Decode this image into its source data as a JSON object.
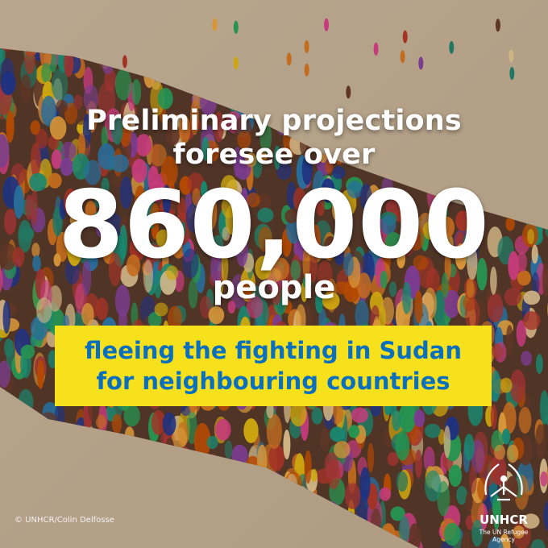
{
  "headline": {
    "lines": [
      "Preliminary projections",
      "foresee over"
    ]
  },
  "figure": {
    "number": "860,000",
    "unit": "people"
  },
  "highlight": {
    "lines": [
      "fleeing the fighting in Sudan",
      "for neighbouring countries"
    ]
  },
  "credit": "© UNHCR/Colin Delfosse",
  "logo": {
    "name": "UNHCR",
    "tagline": "The UN Refugee Agency"
  }
}
